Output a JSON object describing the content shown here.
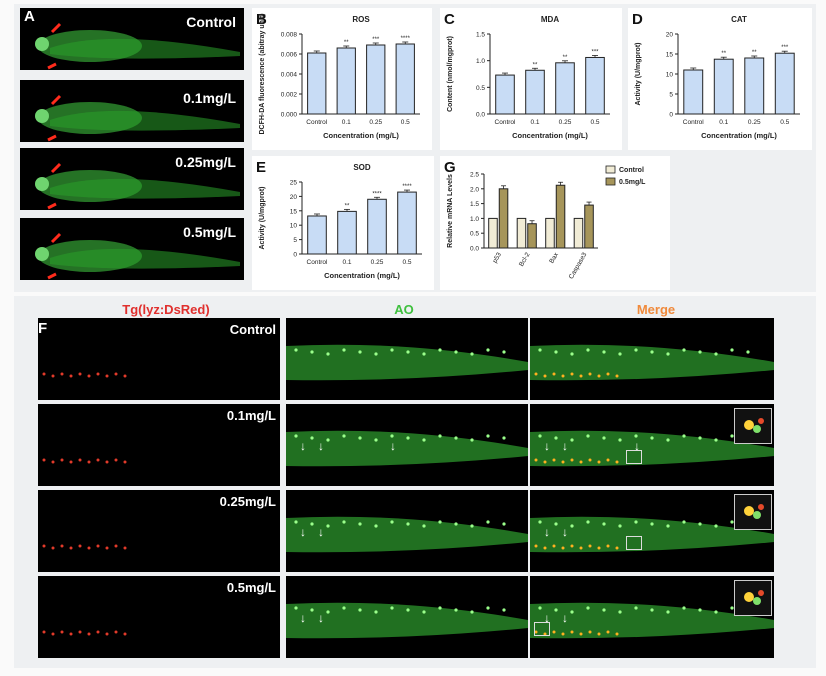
{
  "panels": {
    "A": {
      "letter": "A",
      "labels": [
        "Control",
        "0.1mg/L",
        "0.25mg/L",
        "0.5mg/L"
      ]
    },
    "F": {
      "letter": "F",
      "column_headers": [
        "Tg(lyz:DsRed)",
        "AO",
        "Merge"
      ],
      "row_labels": [
        "Control",
        "0.1mg/L",
        "0.25mg/L",
        "0.5mg/L"
      ],
      "colors": {
        "red_header": "#e0302e",
        "green_header": "#3fc03f",
        "orange_header": "#f08a3c"
      }
    }
  },
  "chart_data": [
    {
      "id": "B",
      "type": "bar",
      "title": "ROS",
      "ylabel": "DCFH-DA fluorescence (abitray unit)",
      "xlabel": "Concentration (mg/L)",
      "categories": [
        "Control",
        "0.1",
        "0.25",
        "0.5"
      ],
      "values": [
        0.0061,
        0.0066,
        0.0069,
        0.007
      ],
      "significance": [
        "",
        "**",
        "***",
        "****"
      ],
      "yticks": [
        "0.000",
        "0.002",
        "0.004",
        "0.006",
        "0.008"
      ],
      "ylim": [
        0,
        0.008
      ]
    },
    {
      "id": "C",
      "type": "bar",
      "title": "MDA",
      "ylabel": "Content (nmol/mgprot)",
      "xlabel": "Concentration (mg/L)",
      "categories": [
        "Control",
        "0.1",
        "0.25",
        "0.5"
      ],
      "values": [
        0.73,
        0.82,
        0.96,
        1.06
      ],
      "significance": [
        "",
        "**",
        "**",
        "***"
      ],
      "yticks": [
        "0.0",
        "0.5",
        "1.0",
        "1.5"
      ],
      "ylim": [
        0,
        1.5
      ]
    },
    {
      "id": "D",
      "type": "bar",
      "title": "CAT",
      "ylabel": "Activity (U/mgprot)",
      "xlabel": "Concentration (mg/L)",
      "categories": [
        "Control",
        "0.1",
        "0.25",
        "0.5"
      ],
      "values": [
        11.0,
        13.7,
        14.0,
        15.2
      ],
      "significance": [
        "",
        "**",
        "**",
        "***"
      ],
      "yticks": [
        "0",
        "5",
        "10",
        "15",
        "20"
      ],
      "ylim": [
        0,
        20
      ]
    },
    {
      "id": "E",
      "type": "bar",
      "title": "SOD",
      "ylabel": "Activity (U/mgprot)",
      "xlabel": "Concentration (mg/L)",
      "categories": [
        "Control",
        "0.1",
        "0.25",
        "0.5"
      ],
      "values": [
        13.2,
        14.8,
        19.0,
        21.5
      ],
      "significance": [
        "",
        "**",
        "****",
        "****"
      ],
      "yticks": [
        "0",
        "5",
        "10",
        "15",
        "20",
        "25"
      ],
      "ylim": [
        0,
        25
      ]
    },
    {
      "id": "G",
      "type": "bar",
      "title": "",
      "ylabel": "Relative mRNA Levels",
      "xlabel": "",
      "categories": [
        "p53",
        "Bcl-2",
        "Bax",
        "Caspase3"
      ],
      "series": [
        {
          "name": "Control",
          "values": [
            1.0,
            1.0,
            1.0,
            1.0
          ]
        },
        {
          "name": "0.5mg/L",
          "values": [
            2.0,
            0.82,
            2.12,
            1.45
          ]
        }
      ],
      "yticks": [
        "0.0",
        "0.5",
        "1.0",
        "1.5",
        "2.0",
        "2.5"
      ],
      "ylim": [
        0,
        2.5
      ],
      "legend": "top-right"
    }
  ],
  "colors": {
    "bar_fill": "#c8dcf5",
    "bar_stroke": "#222222",
    "control_fill": "#f1ecd6",
    "treat_fill": "#a6955a",
    "fish_green": "#35a635"
  }
}
